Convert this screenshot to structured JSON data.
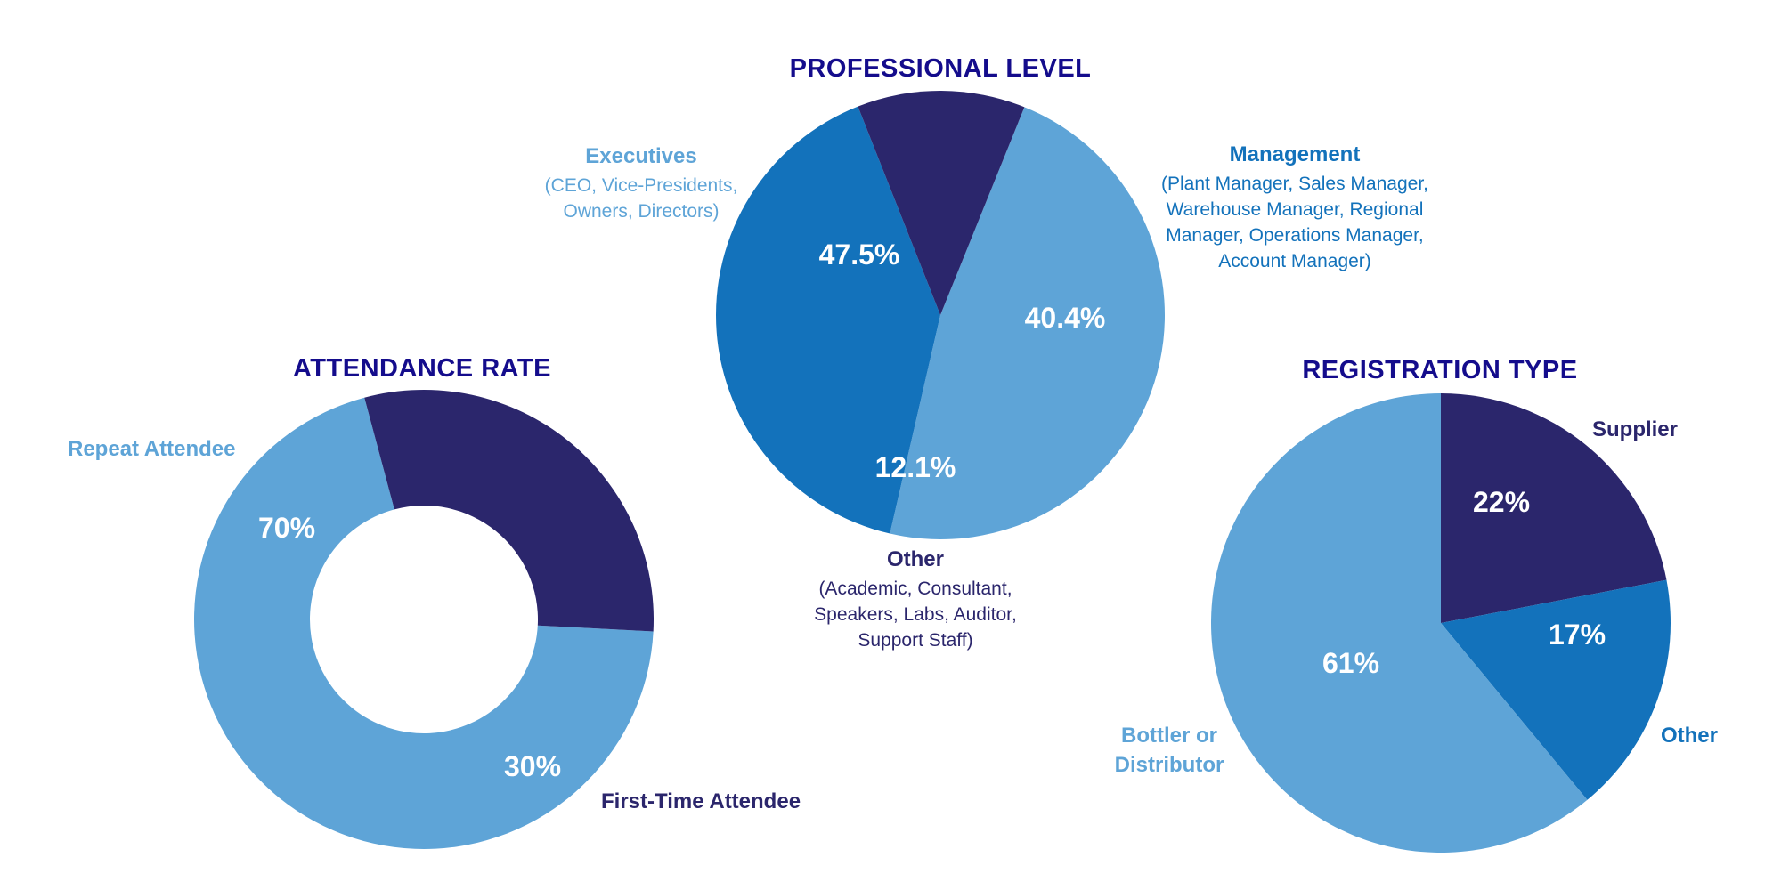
{
  "colors": {
    "title": "#140c8c",
    "light": "#5ea4d7",
    "mid": "#1372bb",
    "dark": "#2b266c",
    "white": "#ffffff"
  },
  "chart_data": [
    {
      "type": "pie",
      "variant": "donut",
      "title": "ATTENDANCE RATE",
      "slices": [
        {
          "name": "Repeat Attendee",
          "label": "Repeat Attendee",
          "value": 70,
          "value_label": "70%",
          "color": "#5ea4d7"
        },
        {
          "name": "First-Time Attendee",
          "label": "First-Time Attendee",
          "value": 30,
          "value_label": "30%",
          "color": "#2b266c"
        }
      ]
    },
    {
      "type": "pie",
      "title": "PROFESSIONAL LEVEL",
      "slices": [
        {
          "name": "Executives",
          "label": "Executives",
          "detail": [
            "(CEO, Vice-Presidents,",
            "Owners, Directors)"
          ],
          "value": 47.5,
          "value_label": "47.5%",
          "color": "#5ea4d7"
        },
        {
          "name": "Management",
          "label": "Management",
          "detail": [
            "(Plant Manager, Sales Manager,",
            "Warehouse Manager, Regional",
            "Manager, Operations Manager,",
            "Account Manager)"
          ],
          "value": 40.4,
          "value_label": "40.4%",
          "color": "#1372bb"
        },
        {
          "name": "Other",
          "label": "Other",
          "detail": [
            "(Academic, Consultant,",
            "Speakers, Labs, Auditor,",
            "Support Staff)"
          ],
          "value": 12.1,
          "value_label": "12.1%",
          "color": "#2b266c"
        }
      ]
    },
    {
      "type": "pie",
      "title": "REGISTRATION TYPE",
      "slices": [
        {
          "name": "Supplier",
          "label": "Supplier",
          "value": 22,
          "value_label": "22%",
          "color": "#2b266c"
        },
        {
          "name": "Other",
          "label": "Other",
          "value": 17,
          "value_label": "17%",
          "color": "#1372bb"
        },
        {
          "name": "Bottler or Distributor",
          "label": "Bottler or Distributor",
          "label_lines": [
            "Bottler or",
            "Distributor"
          ],
          "value": 61,
          "value_label": "61%",
          "color": "#5ea4d7"
        }
      ]
    }
  ]
}
